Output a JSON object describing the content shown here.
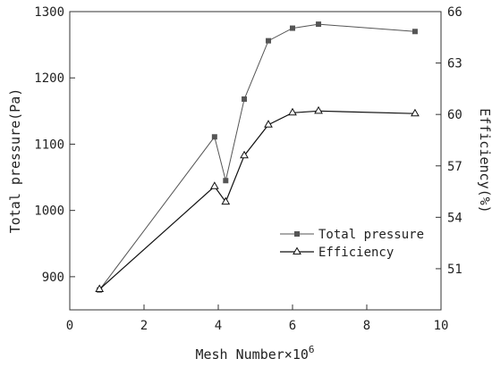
{
  "chart_data": {
    "type": "line",
    "title": "",
    "xlabel": "Mesh Number×10",
    "xlabel_superscript": "6",
    "ylabel_left": "Total pressure(Pa)",
    "ylabel_right": "Efficiency(%)",
    "xlim": [
      0,
      10
    ],
    "ylim_left": [
      850,
      1300
    ],
    "ylim_right": [
      48.6,
      66
    ],
    "x_ticks": [
      "0",
      "2",
      "4",
      "6",
      "8",
      "10"
    ],
    "y_left_ticks": [
      "900",
      "1000",
      "1100",
      "1200",
      "1300"
    ],
    "y_right_ticks": [
      "51",
      "54",
      "57",
      "60",
      "63",
      "66"
    ],
    "grid": false,
    "legend_position": "lower-right",
    "series": [
      {
        "name": "Total pressure",
        "axis": "left",
        "marker": "filled-square",
        "color": "#555555",
        "x": [
          0.8,
          3.9,
          4.2,
          4.7,
          5.35,
          6.0,
          6.7,
          9.3
        ],
        "y": [
          880,
          1111,
          1045,
          1168,
          1256,
          1275,
          1281,
          1270
        ]
      },
      {
        "name": "Efficiency",
        "axis": "right",
        "marker": "hollow-triangle",
        "color": "#111111",
        "x": [
          0.8,
          3.9,
          4.2,
          4.7,
          5.35,
          6.0,
          6.7,
          9.3
        ],
        "y": [
          49.8,
          55.8,
          54.9,
          57.6,
          59.4,
          60.1,
          60.2,
          60.05
        ]
      }
    ]
  }
}
